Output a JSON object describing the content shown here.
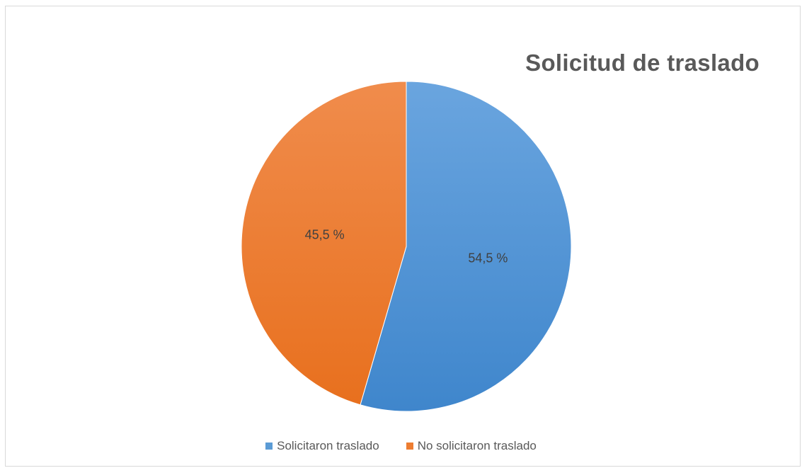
{
  "chart_data": {
    "type": "pie",
    "title": "Solicitud de traslado",
    "slices": [
      {
        "label": "Solicitaron traslado",
        "value": 54.5,
        "display": "54,5 %",
        "color": "#5b9bd5"
      },
      {
        "label": "No solicitaron traslado",
        "value": 45.5,
        "display": "45,5 %",
        "color": "#ed7d31"
      }
    ],
    "legend_position": "bottom"
  }
}
